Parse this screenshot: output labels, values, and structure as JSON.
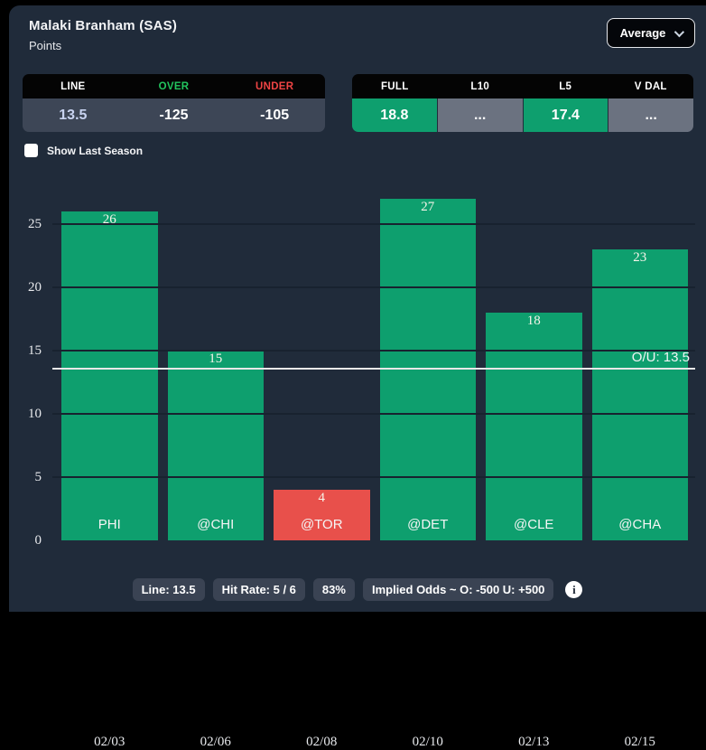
{
  "header": {
    "title": "Malaki Branham (SAS)",
    "subtitle": "Points",
    "aggregation_dropdown": {
      "selected": "Average"
    }
  },
  "line_table": {
    "columns": [
      {
        "header": "LINE",
        "value": "13.5"
      },
      {
        "header": "OVER",
        "value": "-125"
      },
      {
        "header": "UNDER",
        "value": "-105"
      }
    ]
  },
  "splits_table": {
    "columns": [
      {
        "header": "FULL",
        "value": "18.8",
        "highlight": true
      },
      {
        "header": "L10",
        "value": "...",
        "highlight": false
      },
      {
        "header": "L5",
        "value": "17.4",
        "highlight": true
      },
      {
        "header": "V DAL",
        "value": "...",
        "highlight": false
      }
    ]
  },
  "toggle": {
    "label": "Show Last Season",
    "checked": false
  },
  "chart_data": {
    "type": "bar",
    "title": "Malaki Branham (SAS) Points by game",
    "categories": [
      "02/03",
      "02/06",
      "02/08",
      "02/10",
      "02/13",
      "02/15"
    ],
    "opponents": [
      "PHI",
      "@CHI",
      "@TOR",
      "@DET",
      "@CLE",
      "@CHA"
    ],
    "values": [
      26,
      15,
      4,
      27,
      18,
      23
    ],
    "over_line": [
      true,
      true,
      false,
      true,
      true,
      true
    ],
    "reference_line": {
      "value": 13.5,
      "label": "O/U: 13.5"
    },
    "yticks": [
      0,
      5,
      10,
      15,
      20,
      25
    ],
    "ylim": [
      0,
      27.5
    ],
    "grid": true,
    "colors": {
      "over": "#0e9f6e",
      "under": "#e8504b"
    }
  },
  "footer": {
    "badges": [
      "Line: 13.5",
      "Hit Rate: 5 / 6",
      "83%",
      "Implied Odds ~ O: -500 U: +500"
    ],
    "info_glyph": "i"
  }
}
